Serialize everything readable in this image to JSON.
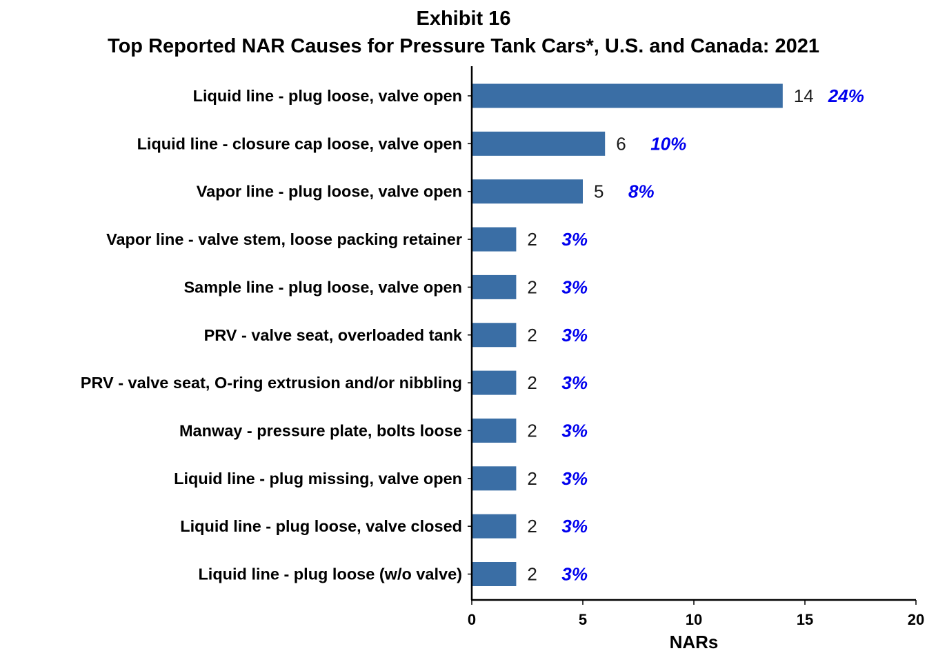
{
  "colors": {
    "bar": "#3a6ea5",
    "percent": "#0000ee",
    "axis": "#000000"
  },
  "chart_data": {
    "type": "bar",
    "orientation": "horizontal",
    "title": "Exhibit 16",
    "subtitle": "Top Reported NAR Causes for Pressure Tank Cars*, U.S. and Canada: 2021",
    "xlabel": "NARs",
    "ylabel": "",
    "xlim": [
      0,
      20
    ],
    "xticks": [
      "0",
      "5",
      "10",
      "15",
      "20"
    ],
    "grid": false,
    "categories": [
      "Liquid line - plug loose, valve open",
      "Liquid line - closure cap loose, valve open",
      "Vapor line - plug loose, valve open",
      "Vapor line - valve stem, loose packing retainer",
      "Sample line - plug loose, valve open",
      "PRV - valve seat, overloaded tank",
      "PRV - valve seat, O-ring extrusion and/or nibbling",
      "Manway - pressure plate, bolts loose",
      "Liquid line - plug missing, valve open",
      "Liquid line - plug loose, valve closed",
      "Liquid line - plug loose (w/o valve)"
    ],
    "values": [
      14,
      6,
      5,
      2,
      2,
      2,
      2,
      2,
      2,
      2,
      2
    ],
    "value_labels": [
      "14",
      "6",
      "5",
      "2",
      "2",
      "2",
      "2",
      "2",
      "2",
      "2",
      "2"
    ],
    "percent_labels": [
      "24%",
      "10%",
      "8%",
      "3%",
      "3%",
      "3%",
      "3%",
      "3%",
      "3%",
      "3%",
      "3%"
    ]
  }
}
